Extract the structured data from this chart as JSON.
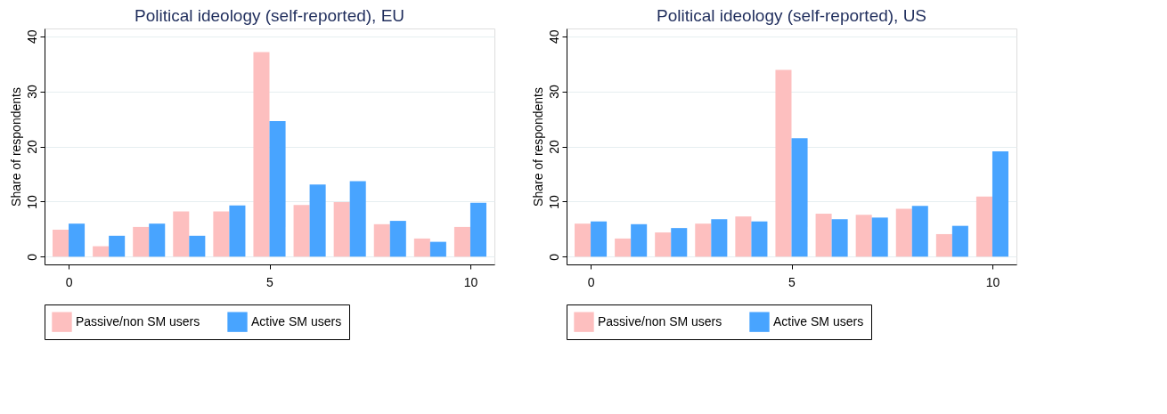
{
  "chart_data": [
    {
      "type": "bar",
      "title": "Political ideology (self-reported), EU",
      "ylabel": "Share of respondents",
      "x": [
        0,
        1,
        2,
        3,
        4,
        5,
        6,
        7,
        8,
        9,
        10
      ],
      "xlim": [
        -0.6,
        10.6
      ],
      "xticks": [
        0,
        5,
        10
      ],
      "ylim": [
        -1.4,
        41.4
      ],
      "yticks": [
        0,
        10,
        20,
        30,
        40
      ],
      "grid": "y",
      "legend": "bottom",
      "series": [
        {
          "name": "Passive/non SM users",
          "color": "#fdbfbf",
          "values": [
            4.9,
            1.9,
            5.4,
            8.2,
            8.2,
            37.1,
            9.4,
            9.9,
            5.9,
            3.3,
            5.4
          ]
        },
        {
          "name": "Active SM users",
          "color": "#48a4ff",
          "values": [
            6.0,
            3.8,
            6.0,
            3.8,
            9.3,
            24.6,
            13.1,
            13.7,
            6.5,
            2.7,
            9.8
          ]
        }
      ]
    },
    {
      "type": "bar",
      "title": "Political ideology (self-reported), US",
      "ylabel": "Share of respondents",
      "x": [
        0,
        1,
        2,
        3,
        4,
        5,
        6,
        7,
        8,
        9,
        10
      ],
      "xlim": [
        -0.6,
        10.6
      ],
      "xticks": [
        0,
        5,
        10
      ],
      "ylim": [
        -1.4,
        41.4
      ],
      "yticks": [
        0,
        10,
        20,
        30,
        40
      ],
      "grid": "y",
      "legend": "bottom",
      "series": [
        {
          "name": "Passive/non SM users",
          "color": "#fdbfbf",
          "values": [
            6.0,
            3.3,
            4.4,
            6.0,
            7.3,
            33.9,
            7.8,
            7.6,
            8.7,
            4.1,
            10.9
          ]
        },
        {
          "name": "Active SM users",
          "color": "#48a4ff",
          "values": [
            6.4,
            5.9,
            5.2,
            6.8,
            6.4,
            21.5,
            6.8,
            7.1,
            9.2,
            5.6,
            19.1
          ]
        }
      ]
    }
  ]
}
